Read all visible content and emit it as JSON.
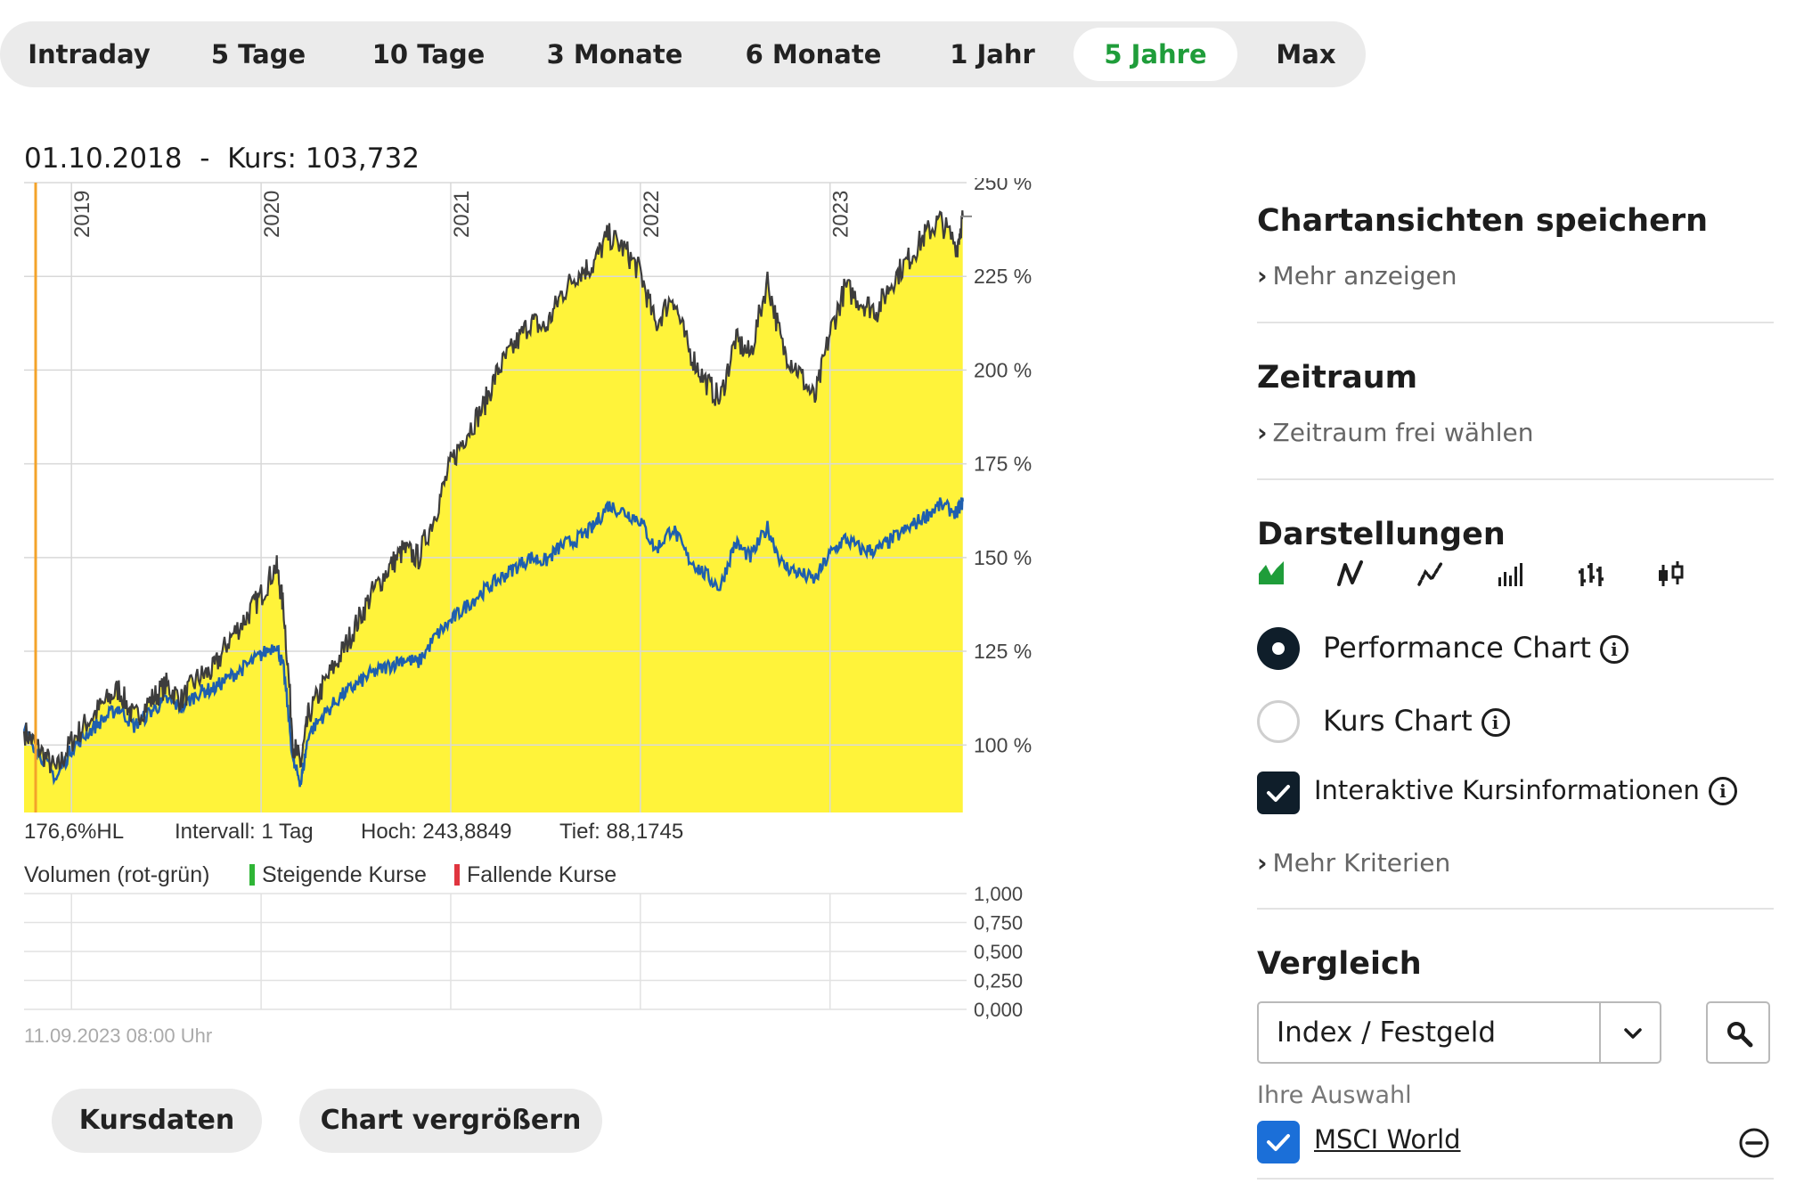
{
  "tabs": [
    {
      "label": "Intraday",
      "active": false
    },
    {
      "label": "5 Tage",
      "active": false
    },
    {
      "label": "10 Tage",
      "active": false
    },
    {
      "label": "3 Monate",
      "active": false
    },
    {
      "label": "6 Monate",
      "active": false
    },
    {
      "label": "1 Jahr",
      "active": false
    },
    {
      "label": "5 Jahre",
      "active": true
    },
    {
      "label": "Max",
      "active": false
    }
  ],
  "crosshair": {
    "date": "01.10.2018",
    "separator": "-",
    "kurs": "Kurs: 103,732"
  },
  "chart_data": {
    "type": "area",
    "x_labels": [
      "2019",
      "2020",
      "2021",
      "2022",
      "2023"
    ],
    "y_ticks": [
      "250 %",
      "225 %",
      "200 %",
      "175 %",
      "150 %",
      "125 %",
      "100 %"
    ],
    "ylim": [
      82,
      250
    ],
    "grid": true,
    "fill_color": "#fff33a",
    "line_color": "#3d3d3d",
    "benchmark_color": "#1f5fae",
    "series": [
      {
        "x": [
          2018.75,
          2018.83,
          2018.92,
          2019.0,
          2019.08,
          2019.17,
          2019.25,
          2019.33,
          2019.42,
          2019.5,
          2019.58,
          2019.67,
          2019.75,
          2019.83,
          2019.92,
          2020.0,
          2020.08,
          2020.12,
          2020.17,
          2020.21,
          2020.25,
          2020.33,
          2020.42,
          2020.5,
          2020.58,
          2020.67,
          2020.75,
          2020.83,
          2020.92,
          2021.0,
          2021.08,
          2021.17,
          2021.25,
          2021.33,
          2021.42,
          2021.5,
          2021.58,
          2021.67,
          2021.75,
          2021.83,
          2021.92,
          2022.0,
          2022.08,
          2022.17,
          2022.25,
          2022.33,
          2022.42,
          2022.5,
          2022.58,
          2022.67,
          2022.75,
          2022.83,
          2022.92,
          2023.0,
          2023.08,
          2023.17,
          2023.25,
          2023.33,
          2023.42,
          2023.5,
          2023.58,
          2023.67,
          2023.7
        ],
        "values": [
          103.7,
          99,
          93,
          101,
          106,
          111,
          115,
          107,
          112,
          116,
          112,
          118,
          120,
          128,
          134,
          140,
          148,
          136,
          100,
          95,
          108,
          116,
          124,
          132,
          140,
          147,
          152,
          150,
          162,
          175,
          183,
          190,
          200,
          206,
          213,
          211,
          220,
          226,
          228,
          236,
          232,
          226,
          212,
          220,
          206,
          198,
          192,
          208,
          204,
          224,
          206,
          200,
          192,
          210,
          222,
          218,
          216,
          224,
          230,
          236,
          240,
          233,
          241
        ]
      },
      {
        "x": [
          2018.75,
          2018.83,
          2018.92,
          2019.0,
          2019.08,
          2019.17,
          2019.25,
          2019.33,
          2019.42,
          2019.5,
          2019.58,
          2019.67,
          2019.75,
          2019.83,
          2019.92,
          2020.0,
          2020.08,
          2020.12,
          2020.17,
          2020.21,
          2020.25,
          2020.33,
          2020.42,
          2020.5,
          2020.58,
          2020.67,
          2020.75,
          2020.83,
          2020.92,
          2021.0,
          2021.08,
          2021.17,
          2021.25,
          2021.33,
          2021.42,
          2021.5,
          2021.58,
          2021.67,
          2021.75,
          2021.83,
          2021.92,
          2022.0,
          2022.08,
          2022.17,
          2022.25,
          2022.33,
          2022.42,
          2022.5,
          2022.58,
          2022.67,
          2022.75,
          2022.83,
          2022.92,
          2023.0,
          2023.08,
          2023.17,
          2023.25,
          2023.33,
          2023.42,
          2023.5,
          2023.58,
          2023.67,
          2023.7
        ],
        "values": [
          103.7,
          98,
          91,
          99,
          103,
          107,
          110,
          105,
          109,
          112,
          110,
          114,
          115,
          118,
          121,
          124,
          127,
          120,
          95,
          90,
          103,
          108,
          113,
          116,
          119,
          121,
          123,
          122,
          129,
          133,
          137,
          141,
          144,
          147,
          150,
          149,
          153,
          155,
          158,
          164,
          162,
          160,
          152,
          158,
          150,
          146,
          142,
          154,
          150,
          158,
          148,
          146,
          144,
          151,
          155,
          152,
          152,
          155,
          158,
          161,
          164,
          162,
          165
        ]
      }
    ]
  },
  "stats": {
    "hl": "176,6%HL",
    "intervall": "Intervall: 1 Tag",
    "hoch": "Hoch: 243,8849",
    "tief": "Tief: 88,1745"
  },
  "volume": {
    "title": "Volumen (rot-grün)",
    "up_label": "Steigende Kurse",
    "down_label": "Fallende Kurse",
    "y_ticks": [
      "1,000",
      "0,750",
      "0,500",
      "0,250",
      "0,000"
    ],
    "up_color": "#2fb536",
    "down_color": "#e0353f"
  },
  "timestamp": "11.09.2023 08:00 Uhr",
  "buttons": {
    "kursdaten": "Kursdaten",
    "vergroessern": "Chart vergrößern"
  },
  "panel": {
    "save_title": "Chartansichten speichern",
    "save_link": "Mehr anzeigen",
    "zeitraum_title": "Zeitraum",
    "zeitraum_link": "Zeitraum frei wählen",
    "darstellungen_title": "Darstellungen",
    "view_icons": [
      "area-chart-icon",
      "line-chart-icon",
      "dotted-line-chart-icon",
      "bar-chart-icon",
      "ohlc-chart-icon",
      "candlestick-chart-icon"
    ],
    "opt_performance": "Performance Chart",
    "opt_kurs": "Kurs Chart",
    "opt_interaktiv": "Interaktive Kursinformationen",
    "more_criteria": "Mehr Kriterien",
    "vergleich_title": "Vergleich",
    "select_value": "Index / Festgeld",
    "ihre_auswahl": "Ihre Auswahl",
    "selected_item": "MSCI World"
  }
}
